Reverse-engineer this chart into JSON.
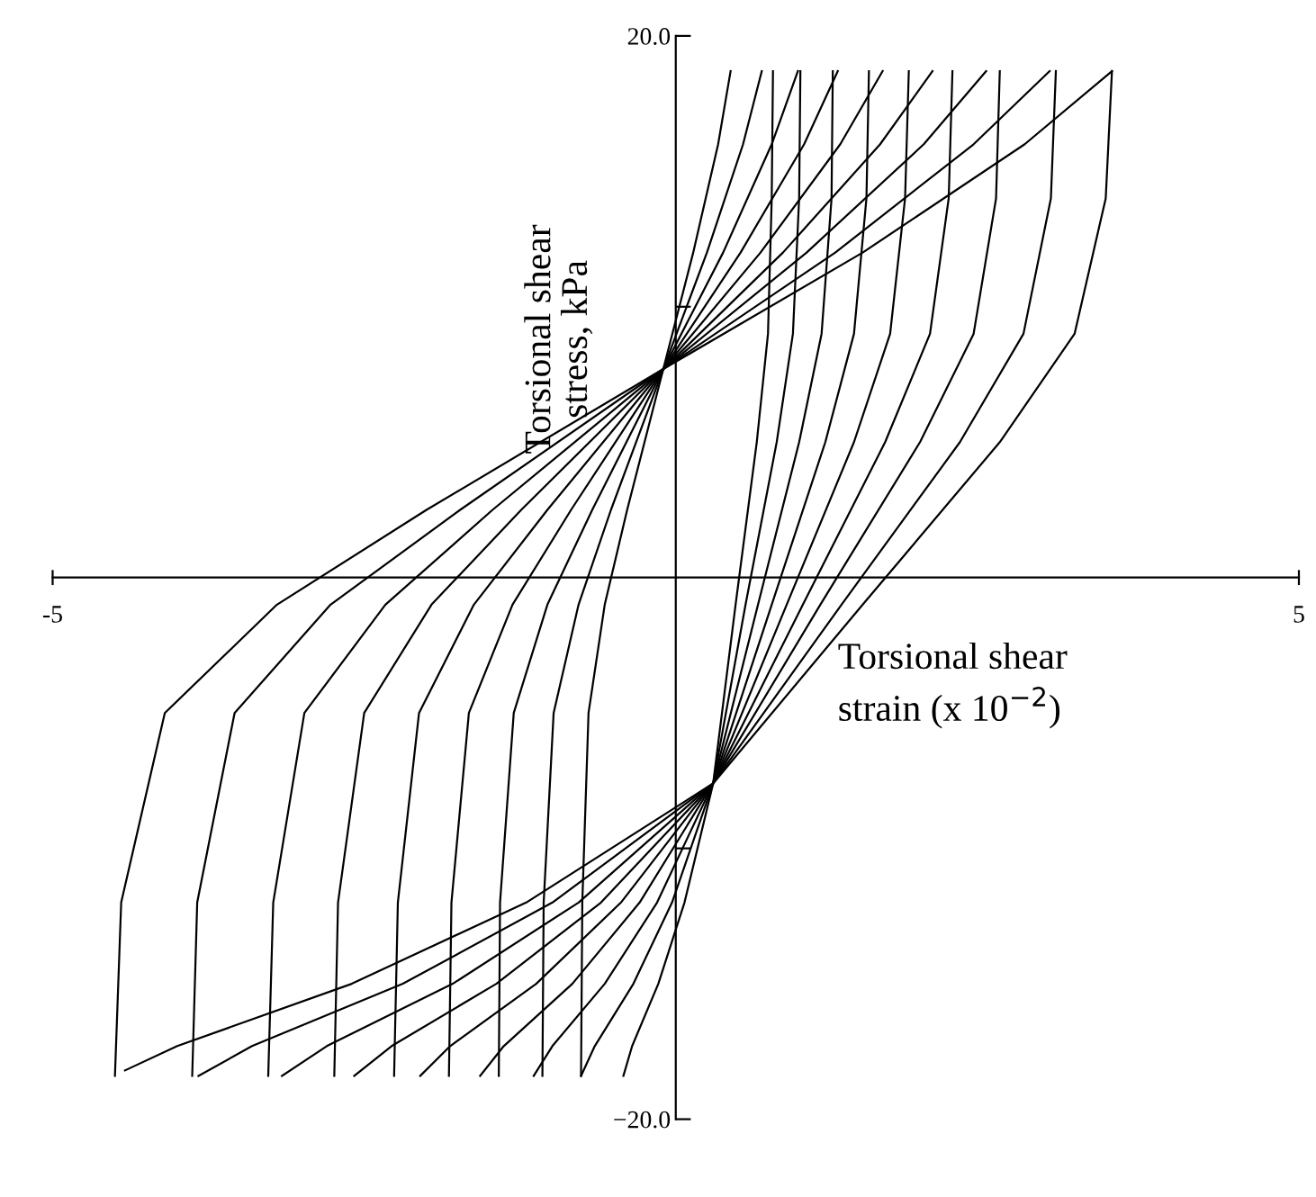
{
  "chart_data": {
    "type": "line",
    "xlabel": "Torsional shear\nstrain (x 10$^{−2}$)",
    "ylabel": "Torsional shear\nstress, kPa",
    "xlim": [
      -5,
      5
    ],
    "ylim": [
      -20,
      20
    ],
    "xticks": [
      -5,
      5
    ],
    "yticks": [
      {
        "value": 20,
        "label": "20.0"
      },
      {
        "value": 10,
        "label": null
      },
      {
        "value": -10,
        "label": null
      },
      {
        "value": -20,
        "label": "−20.0"
      }
    ],
    "grid": false,
    "marker": "none",
    "line_style": "solid",
    "series": [
      {
        "color": "#000000",
        "x": [
          -4.5,
          -4.45,
          -4.1,
          -3.2,
          -2.0,
          -0.1,
          1.5,
          2.8,
          3.5
        ],
        "values": [
          -18.4,
          -12,
          -5,
          -1,
          2.5,
          7.7,
          12,
          16,
          18.7
        ]
      },
      {
        "color": "#000000",
        "x": [
          -4.42,
          -4.0,
          -2.6,
          -1.2,
          0.3,
          1.5,
          2.6,
          3.2,
          3.45,
          3.5
        ],
        "values": [
          -18.2,
          -17.3,
          -15,
          -12,
          -7.6,
          -1,
          5,
          9,
          14,
          18.7
        ]
      },
      {
        "color": "#000000",
        "x": [
          -3.88,
          -3.84,
          -3.54,
          -2.77,
          -1.73,
          -0.1,
          1.28,
          2.39,
          3.0
        ],
        "values": [
          -18.4,
          -12,
          -5,
          -1,
          2.5,
          7.7,
          12,
          16,
          18.7
        ]
      },
      {
        "color": "#000000",
        "x": [
          -3.83,
          -3.4,
          -2.19,
          -0.99,
          0.3,
          1.33,
          2.28,
          2.79,
          3.01,
          3.05
        ],
        "values": [
          -18.4,
          -17.3,
          -15,
          -12,
          -7.6,
          -1,
          5,
          9,
          14,
          18.7
        ]
      },
      {
        "color": "#000000",
        "x": [
          -3.27,
          -3.23,
          -2.98,
          -2.33,
          -1.47,
          -0.1,
          1.05,
          1.99,
          2.49
        ],
        "values": [
          -18.4,
          -12,
          -5,
          -1,
          2.5,
          7.7,
          12,
          16,
          18.7
        ]
      },
      {
        "color": "#000000",
        "x": [
          -3.16,
          -2.8,
          -1.79,
          -0.78,
          0.3,
          1.16,
          1.96,
          2.39,
          2.57,
          2.6
        ],
        "values": [
          -18.4,
          -17.3,
          -15,
          -12,
          -7.6,
          -1,
          5,
          9,
          14,
          18.7
        ]
      },
      {
        "color": "#000000",
        "x": [
          -2.74,
          -2.71,
          -2.5,
          -1.96,
          -1.24,
          -0.1,
          0.86,
          1.64,
          2.06
        ],
        "values": [
          -18.4,
          -12,
          -5,
          -1,
          2.5,
          7.7,
          12,
          16,
          18.7
        ]
      },
      {
        "color": "#000000",
        "x": [
          -2.58,
          -2.28,
          -1.44,
          -0.6,
          0.3,
          1.02,
          1.68,
          2.04,
          2.19,
          2.22
        ],
        "values": [
          -18.4,
          -17.3,
          -15,
          -12,
          -7.6,
          -1,
          5,
          9,
          14,
          18.7
        ]
      },
      {
        "color": "#000000",
        "x": [
          -2.26,
          -2.23,
          -2.06,
          -1.62,
          -1.03,
          -0.1,
          0.68,
          1.32,
          1.66
        ],
        "values": [
          -18.4,
          -12,
          -5,
          -1,
          2.5,
          7.7,
          12,
          16,
          18.7
        ]
      },
      {
        "color": "#000000",
        "x": [
          -2.05,
          -1.81,
          -1.12,
          -0.44,
          0.3,
          0.89,
          1.43,
          1.72,
          1.84,
          1.87
        ],
        "values": [
          -18.4,
          -17.3,
          -15,
          -12,
          -7.6,
          -1,
          5,
          9,
          14,
          18.7
        ]
      },
      {
        "color": "#000000",
        "x": [
          -1.82,
          -1.8,
          -1.66,
          -1.31,
          -0.84,
          -0.1,
          0.52,
          1.03,
          1.3
        ],
        "values": [
          -18.4,
          -12,
          -5,
          -1,
          2.5,
          7.7,
          12,
          16,
          18.7
        ]
      },
      {
        "color": "#000000",
        "x": [
          -1.57,
          -1.38,
          -0.83,
          -0.29,
          0.3,
          0.77,
          1.2,
          1.43,
          1.53,
          1.55
        ],
        "values": [
          -18.4,
          -17.3,
          -15,
          -12,
          -7.6,
          -1,
          5,
          9,
          14,
          18.7
        ]
      },
      {
        "color": "#000000",
        "x": [
          -1.42,
          -1.41,
          -1.3,
          -1.03,
          -0.67,
          -0.1,
          0.38,
          0.77,
          0.98
        ],
        "values": [
          -18.4,
          -12,
          -5,
          -1,
          2.5,
          7.7,
          12,
          16,
          18.7
        ]
      },
      {
        "color": "#000000",
        "x": [
          -1.14,
          -0.99,
          -0.57,
          -0.15,
          0.3,
          0.66,
          0.99,
          1.17,
          1.25,
          1.26
        ],
        "values": [
          -18.4,
          -17.3,
          -15,
          -12,
          -7.6,
          -1,
          5,
          9,
          14,
          18.7
        ]
      },
      {
        "color": "#000000",
        "x": [
          -1.07,
          -1.06,
          -0.98,
          -0.78,
          -0.52,
          -0.1,
          0.25,
          0.54,
          0.69
        ],
        "values": [
          -18.4,
          -12,
          -5,
          -1,
          2.5,
          7.7,
          12,
          16,
          18.7
        ]
      },
      {
        "color": "#000000",
        "x": [
          -0.76,
          -0.65,
          -0.34,
          -0.03,
          0.3,
          0.56,
          0.81,
          0.94,
          0.99,
          1.0
        ],
        "values": [
          -18.4,
          -17.3,
          -15,
          -12,
          -7.6,
          -1,
          5,
          9,
          14,
          18.7
        ]
      },
      {
        "color": "#000000",
        "x": [
          -0.76,
          -0.75,
          -0.7,
          -0.57,
          -0.39,
          -0.1,
          0.14,
          0.34,
          0.44
        ],
        "values": [
          -18.4,
          -12,
          -5,
          -1,
          2.5,
          7.7,
          12,
          16,
          18.7
        ]
      },
      {
        "color": "#000000",
        "x": [
          -0.42,
          -0.35,
          -0.14,
          0.07,
          0.3,
          0.48,
          0.65,
          0.74,
          0.77,
          0.78
        ],
        "values": [
          -18.4,
          -17.3,
          -15,
          -12,
          -7.6,
          -1,
          5,
          9,
          14,
          18.7
        ]
      }
    ]
  }
}
